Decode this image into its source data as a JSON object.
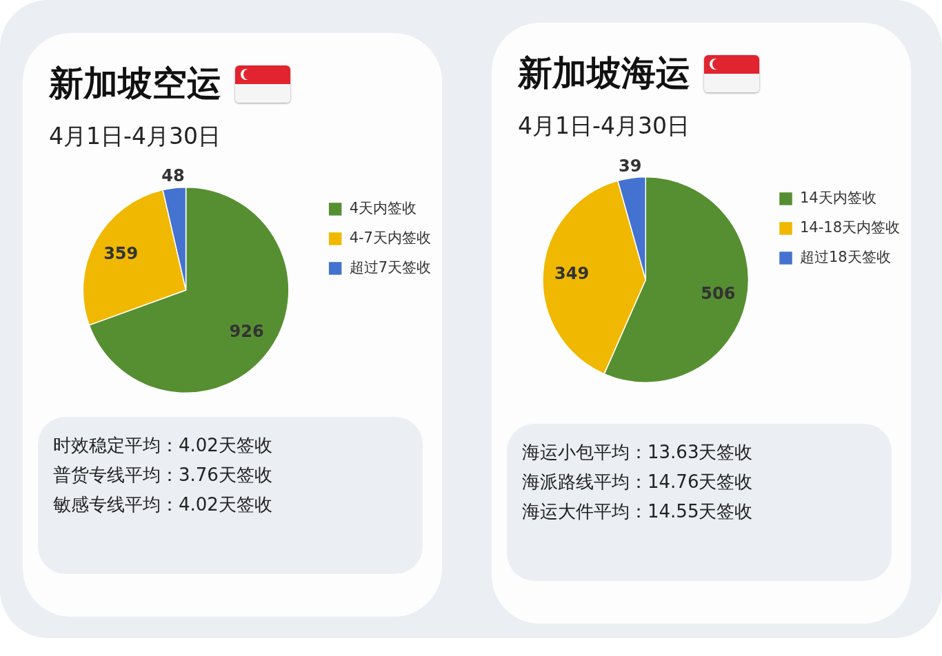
{
  "chart_data": [
    {
      "type": "pie",
      "title": "新加坡空运",
      "subtitle": "4月1日-4月30日",
      "categories": [
        "4天内签收",
        "4-7天内签收",
        "超过7天签收"
      ],
      "values": [
        926,
        359,
        48
      ],
      "colors": [
        "#568f31",
        "#f0b800",
        "#4472d0"
      ],
      "data_labels": true,
      "legend": "right",
      "annotations": [
        "时效稳定平均：4.02天签收",
        "普货专线平均：3.76天签收",
        "敏感专线平均：4.02天签收"
      ]
    },
    {
      "type": "pie",
      "title": "新加坡海运",
      "subtitle": "4月1日-4月30日",
      "categories": [
        "14天内签收",
        "14-18天内签收",
        "超过18天签收"
      ],
      "values": [
        506,
        349,
        39
      ],
      "colors": [
        "#568f31",
        "#f0b800",
        "#4472d0"
      ],
      "data_labels": true,
      "legend": "right",
      "annotations": [
        "海运小包平均：13.63天签收",
        "海派路线平均：14.76天签收",
        "海运大件平均：14.55天签收"
      ]
    }
  ]
}
